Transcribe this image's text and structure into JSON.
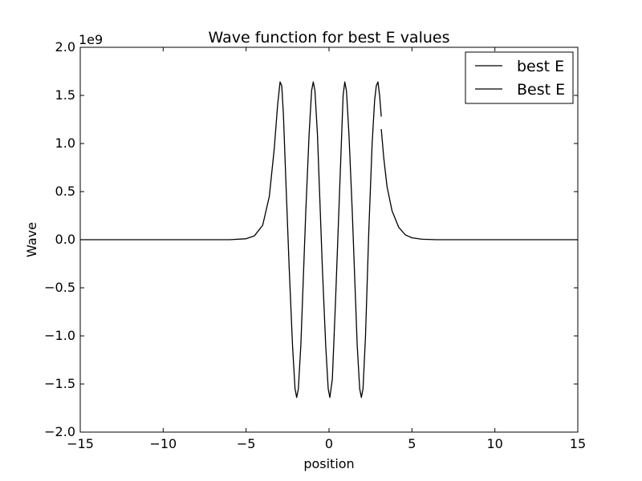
{
  "chart_data": {
    "type": "line",
    "title": "Wave function for best E values",
    "xlabel": "position",
    "ylabel": "Wave",
    "y_scale_label": "1e9",
    "xlim": [
      -15,
      15
    ],
    "ylim": [
      -2.0,
      2.0
    ],
    "xticks": [
      -15,
      -10,
      -5,
      0,
      5,
      10,
      15
    ],
    "xtick_labels": [
      "−15",
      "−10",
      "−5",
      "0",
      "5",
      "10",
      "15"
    ],
    "yticks": [
      -2.0,
      -1.5,
      -1.0,
      -0.5,
      0.0,
      0.5,
      1.0,
      1.5,
      2.0
    ],
    "ytick_labels": [
      "−2.0",
      "−1.5",
      "−1.0",
      "−0.5",
      "0.0",
      "0.5",
      "1.0",
      "1.5",
      "2.0"
    ],
    "grid": false,
    "legend_position": "top-right",
    "series": [
      {
        "name": "best E",
        "color": "#000000",
        "x": [
          -15,
          -6,
          -5,
          -4.5,
          -4,
          -3.6,
          -3.3,
          -3.1,
          -2.95,
          -2.85,
          -2.75,
          -2.6,
          -2.4,
          -2.2,
          -2.05,
          -1.95,
          -1.85,
          -1.7,
          -1.4,
          -1.2,
          -1.05,
          -0.95,
          -0.85,
          -0.7,
          -0.4,
          -0.2,
          -0.05,
          0.05,
          0.2,
          0.4,
          0.7,
          0.85,
          0.95,
          1.05,
          1.2,
          1.4,
          1.7,
          1.85,
          1.95,
          2.05,
          2.2,
          2.4,
          2.6,
          2.75,
          2.85,
          2.95,
          3.05,
          3.15
        ],
        "y": [
          0.0,
          0.0,
          0.01,
          0.04,
          0.15,
          0.45,
          0.95,
          1.4,
          1.64,
          1.6,
          1.3,
          0.6,
          -0.3,
          -1.1,
          -1.55,
          -1.64,
          -1.55,
          -1.1,
          0.3,
          1.1,
          1.55,
          1.64,
          1.55,
          1.1,
          -0.3,
          -1.1,
          -1.55,
          -1.64,
          -1.45,
          -0.6,
          0.8,
          1.5,
          1.64,
          1.55,
          1.1,
          0.3,
          -1.1,
          -1.55,
          -1.64,
          -1.55,
          -1.0,
          0.1,
          1.0,
          1.45,
          1.6,
          1.64,
          1.5,
          1.28
        ]
      },
      {
        "name": "Best E",
        "color": "#000000",
        "x": [
          3.15,
          3.3,
          3.5,
          3.8,
          4.2,
          4.6,
          5.0,
          5.6,
          6.5,
          15
        ],
        "y": [
          1.15,
          0.85,
          0.55,
          0.3,
          0.13,
          0.05,
          0.02,
          0.005,
          0.0,
          0.0
        ]
      }
    ]
  }
}
